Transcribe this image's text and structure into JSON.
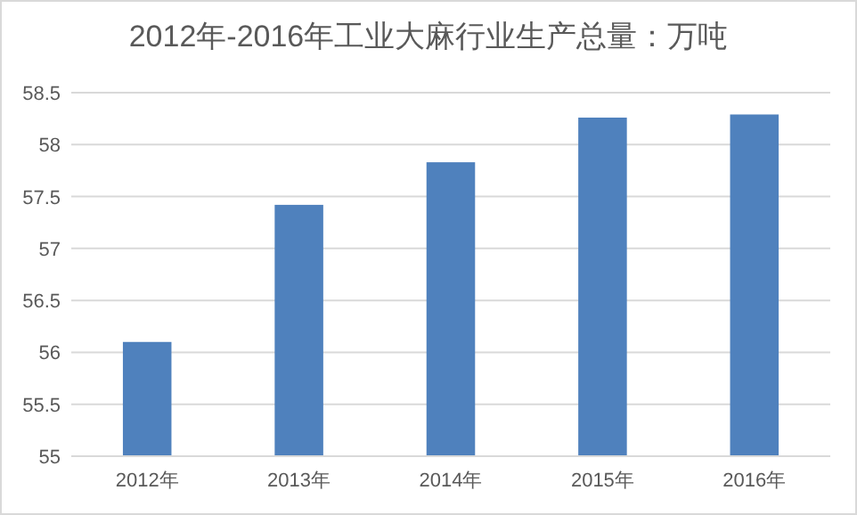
{
  "chart_data": {
    "type": "bar",
    "title": "2012年-2016年工业大麻行业生产总量：万吨",
    "categories": [
      "2012年",
      "2013年",
      "2014年",
      "2015年",
      "2016年"
    ],
    "values": [
      56.1,
      57.42,
      57.83,
      58.26,
      58.29
    ],
    "color": "#4f81bd",
    "ylim": [
      55,
      58.5
    ],
    "yticks": [
      55,
      55.5,
      56,
      56.5,
      57,
      57.5,
      58,
      58.5
    ],
    "grid": "y"
  }
}
